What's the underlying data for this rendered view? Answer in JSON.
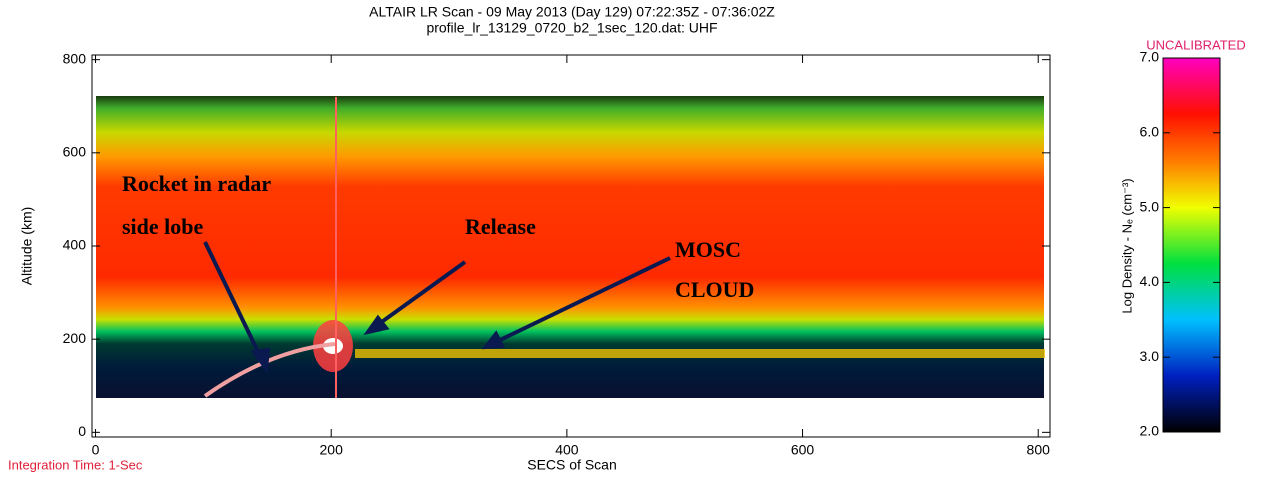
{
  "chart_data": {
    "type": "heatmap",
    "title": "ALTAIR LR Scan - 09 May 2013 (Day 129) 07:22:35Z - 07:36:02Z",
    "subtitle": "profile_lr_13129_0720_b2_1sec_120.dat: UHF",
    "x_label": "SECS of Scan",
    "y_label": "Altitude (km)",
    "xlim": [
      -3,
      810
    ],
    "xticks": [
      0,
      200,
      400,
      600,
      800
    ],
    "ylim": [
      -10,
      810
    ],
    "yticks": [
      0,
      200,
      400,
      600,
      800
    ],
    "colorbar": {
      "label": "Log Density - Nₑ (cm⁻³)",
      "note": "UNCALIBRATED",
      "clim": [
        2,
        7
      ],
      "ticks": [
        {
          "value": 2,
          "label": "2.0"
        },
        {
          "value": 3,
          "label": "3.0"
        },
        {
          "value": 4,
          "label": "4.0"
        },
        {
          "value": 5,
          "label": "5.0"
        },
        {
          "value": 6,
          "label": "6.0"
        },
        {
          "value": 7,
          "label": "7.0"
        }
      ]
    },
    "footer": "Integration Time: 1-Sec",
    "annotations": [
      [
        "Rocket in radar",
        "side lobe"
      ],
      [
        "Release"
      ],
      [
        "MOSC",
        "CLOUD"
      ]
    ]
  }
}
